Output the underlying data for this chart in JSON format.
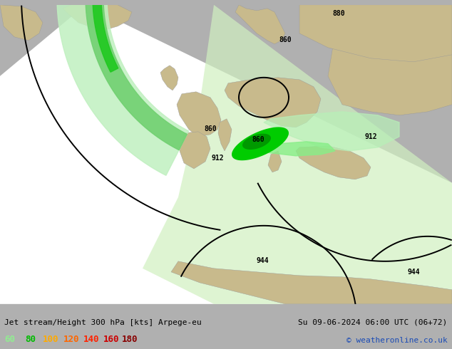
{
  "title_left": "Jet stream/Height 300 hPa [kts] Arpege-eu",
  "title_right": "Su 09-06-2024 06:00 UTC (06+72)",
  "credit": "© weatheronline.co.uk",
  "legend_values": [
    "60",
    "80",
    "100",
    "120",
    "140",
    "160",
    "180"
  ],
  "legend_colors": [
    "#90ee90",
    "#00bb00",
    "#ffaa00",
    "#ff6600",
    "#ff2200",
    "#cc0000",
    "#880000"
  ],
  "fig_width": 6.34,
  "fig_height": 4.9,
  "dpi": 100,
  "outside_color": "#b0b0b0",
  "domain_white": "#ffffff",
  "light_green_tint": "#d8f0d0",
  "land_color": "#c8ba8c",
  "sea_color": "#dce8f0",
  "coast_color": "#808080",
  "contour_color": "#000000",
  "bottom_bg": "#e8e8e8",
  "text_color": "#000000",
  "credit_color": "#1a4bb5",
  "jet_light_green": "#b8eeb8",
  "jet_mid_green": "#60d060",
  "jet_bright_green": "#00cc00",
  "jet_dark_green": "#008800"
}
